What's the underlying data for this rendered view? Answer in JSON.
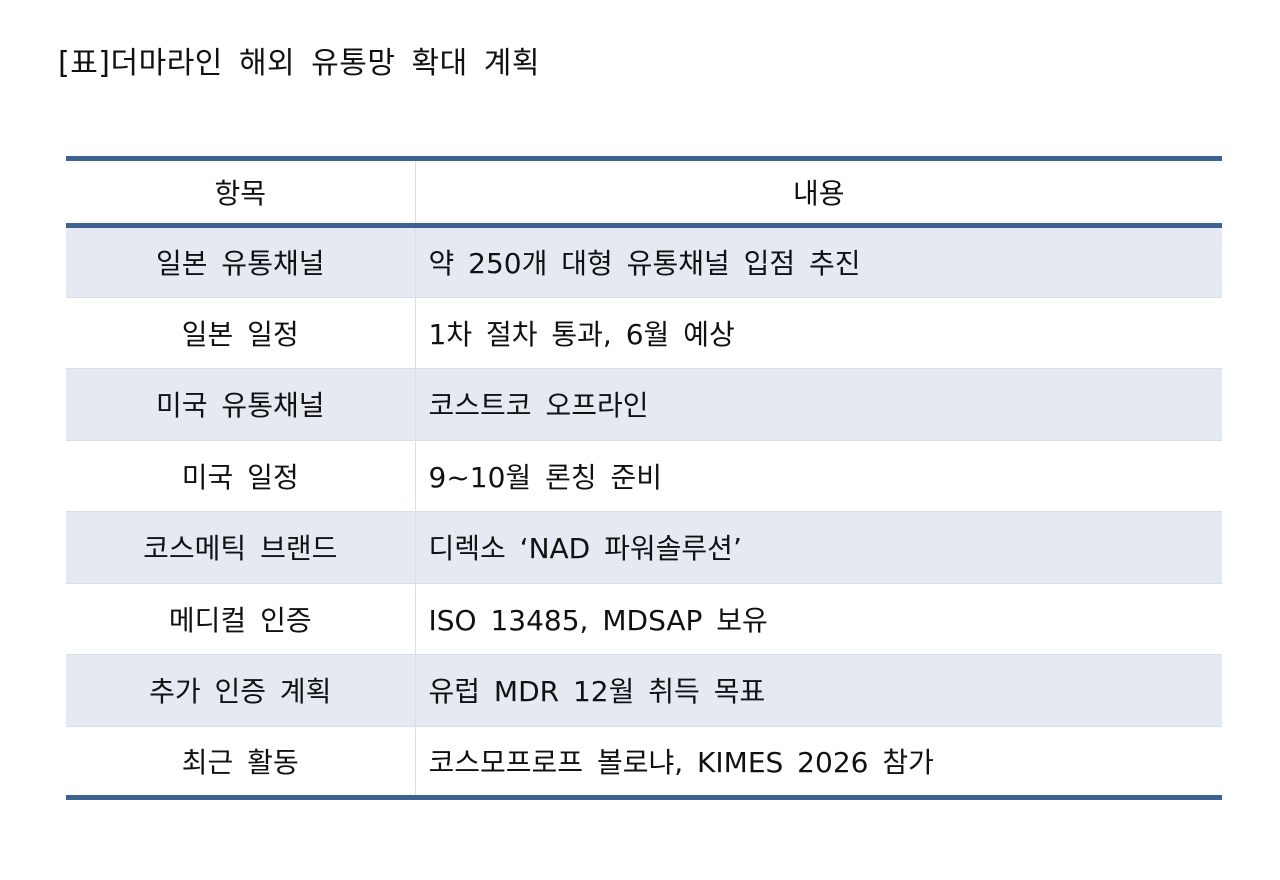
{
  "title": "[표]더마라인 해외 유통망 확대 계획",
  "table": {
    "headers": [
      "항목",
      "내용"
    ],
    "rows": [
      {
        "item": "일본 유통채널",
        "content": "약 250개 대형 유통채널 입점 추진"
      },
      {
        "item": "일본 일정",
        "content": "1차 절차 통과, 6월 예상"
      },
      {
        "item": "미국 유통채널",
        "content": "코스트코 오프라인"
      },
      {
        "item": "미국 일정",
        "content": "9~10월 론칭 준비"
      },
      {
        "item": "코스메틱 브랜드",
        "content": "디렉소 ‘NAD 파워솔루션’"
      },
      {
        "item": "메디컬 인증",
        "content": "ISO 13485, MDSAP 보유"
      },
      {
        "item": "추가 인증 계획",
        "content": "유럽 MDR 12월 취득 목표"
      },
      {
        "item": "최근 활동",
        "content": "코스모프로프 볼로냐, KIMES 2026 참가"
      }
    ]
  },
  "colors": {
    "border_accent": "#3c6291",
    "row_alt_bg": "#e4e9f2",
    "divider": "#d8dee8"
  }
}
